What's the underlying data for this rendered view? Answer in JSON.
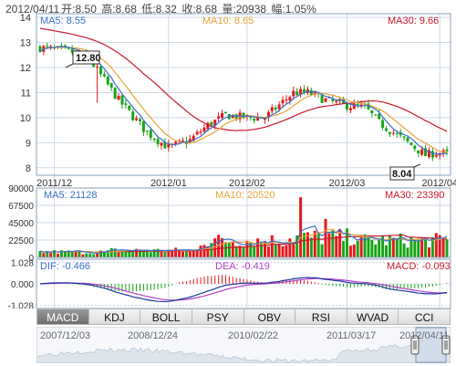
{
  "header": {
    "date": "2012/04/11",
    "open": "开:8.50",
    "high": "高:8.68",
    "low": "低:8.32",
    "close": "收:8.68",
    "volume": "量:20938",
    "change": "幅:1.05%"
  },
  "price_panel": {
    "ma5": "MA5: 8.55",
    "ma10": "MA10: 8.65",
    "ma30": "MA30: 9.66",
    "label_high": "12.80",
    "label_low": "8.04"
  },
  "volume_panel": {
    "ma5": "MA5: 21128",
    "ma10": "MA10: 20520",
    "ma30": "MA30: 23390"
  },
  "macd_panel": {
    "dif": "DIF: -0.466",
    "dea": "DEA: -0.419",
    "macd": "MACD: -0.093"
  },
  "tabs": [
    "MACD",
    "KDJ",
    "BOLL",
    "PSY",
    "OBV",
    "RSI",
    "WVAD",
    "CCI"
  ],
  "active_tab": "MACD",
  "navigator": {
    "dates": [
      "2007/12/03",
      "2008/12/24",
      "2010/02/22",
      "2011/03/17",
      "2012/04/11"
    ]
  },
  "colors": {
    "up": "#e8161b",
    "down": "#16a516",
    "ma5": "#3a6fc8",
    "ma10": "#e8a33a",
    "ma30": "#c8192a",
    "dea": "#b43cc8",
    "grid": "#cfd9e6"
  },
  "chart_data": [
    {
      "type": "candlestick",
      "ylim": [
        8,
        14
      ],
      "y_ticks": [
        "8",
        "9",
        "10",
        "11",
        "12",
        "13",
        "14"
      ],
      "x_ticks": [
        "2011/12",
        "2012/01",
        "2012/02",
        "2012/03",
        "2012/04"
      ],
      "anchors": [
        {
          "i": 0,
          "price": 12.8
        },
        {
          "i": 10,
          "price": 12.6
        },
        {
          "i": 14,
          "price": 12.3
        },
        {
          "i": 22,
          "price": 10.7
        },
        {
          "i": 30,
          "price": 9.4
        },
        {
          "i": 36,
          "price": 8.8
        },
        {
          "i": 42,
          "price": 9.1
        },
        {
          "i": 47,
          "price": 9.7
        },
        {
          "i": 52,
          "price": 10.1
        },
        {
          "i": 58,
          "price": 10.0
        },
        {
          "i": 63,
          "price": 10.0
        },
        {
          "i": 67,
          "price": 10.5
        },
        {
          "i": 71,
          "price": 11.0
        },
        {
          "i": 75,
          "price": 11.0
        },
        {
          "i": 80,
          "price": 10.7
        },
        {
          "i": 85,
          "price": 10.5
        },
        {
          "i": 91,
          "price": 10.4
        },
        {
          "i": 95,
          "price": 9.8
        },
        {
          "i": 100,
          "price": 9.3
        },
        {
          "i": 104,
          "price": 8.9
        },
        {
          "i": 108,
          "price": 8.5
        },
        {
          "i": 111,
          "price": 8.6
        },
        {
          "i": 114,
          "price": 8.55
        }
      ],
      "n_candles": 115,
      "ma30_start": 13.6
    },
    {
      "type": "bar",
      "ylim": [
        0,
        90000
      ],
      "y_ticks": [
        "0",
        "22500",
        "45000",
        "67500",
        "90000"
      ],
      "vol_segments": [
        {
          "from": 0,
          "to": 20,
          "level": 7000
        },
        {
          "from": 20,
          "to": 45,
          "level": 9000
        },
        {
          "from": 45,
          "to": 70,
          "level": 22000
        },
        {
          "from": 70,
          "to": 90,
          "level": 26000
        },
        {
          "from": 90,
          "to": 115,
          "level": 22000
        }
      ],
      "spikes": [
        {
          "i": 73,
          "value": 78000
        },
        {
          "i": 80,
          "value": 50000
        }
      ]
    },
    {
      "type": "line",
      "ylim": [
        -1.028,
        1.028
      ],
      "y_ticks": [
        "1.028",
        "0.000",
        "-1.028"
      ]
    }
  ]
}
